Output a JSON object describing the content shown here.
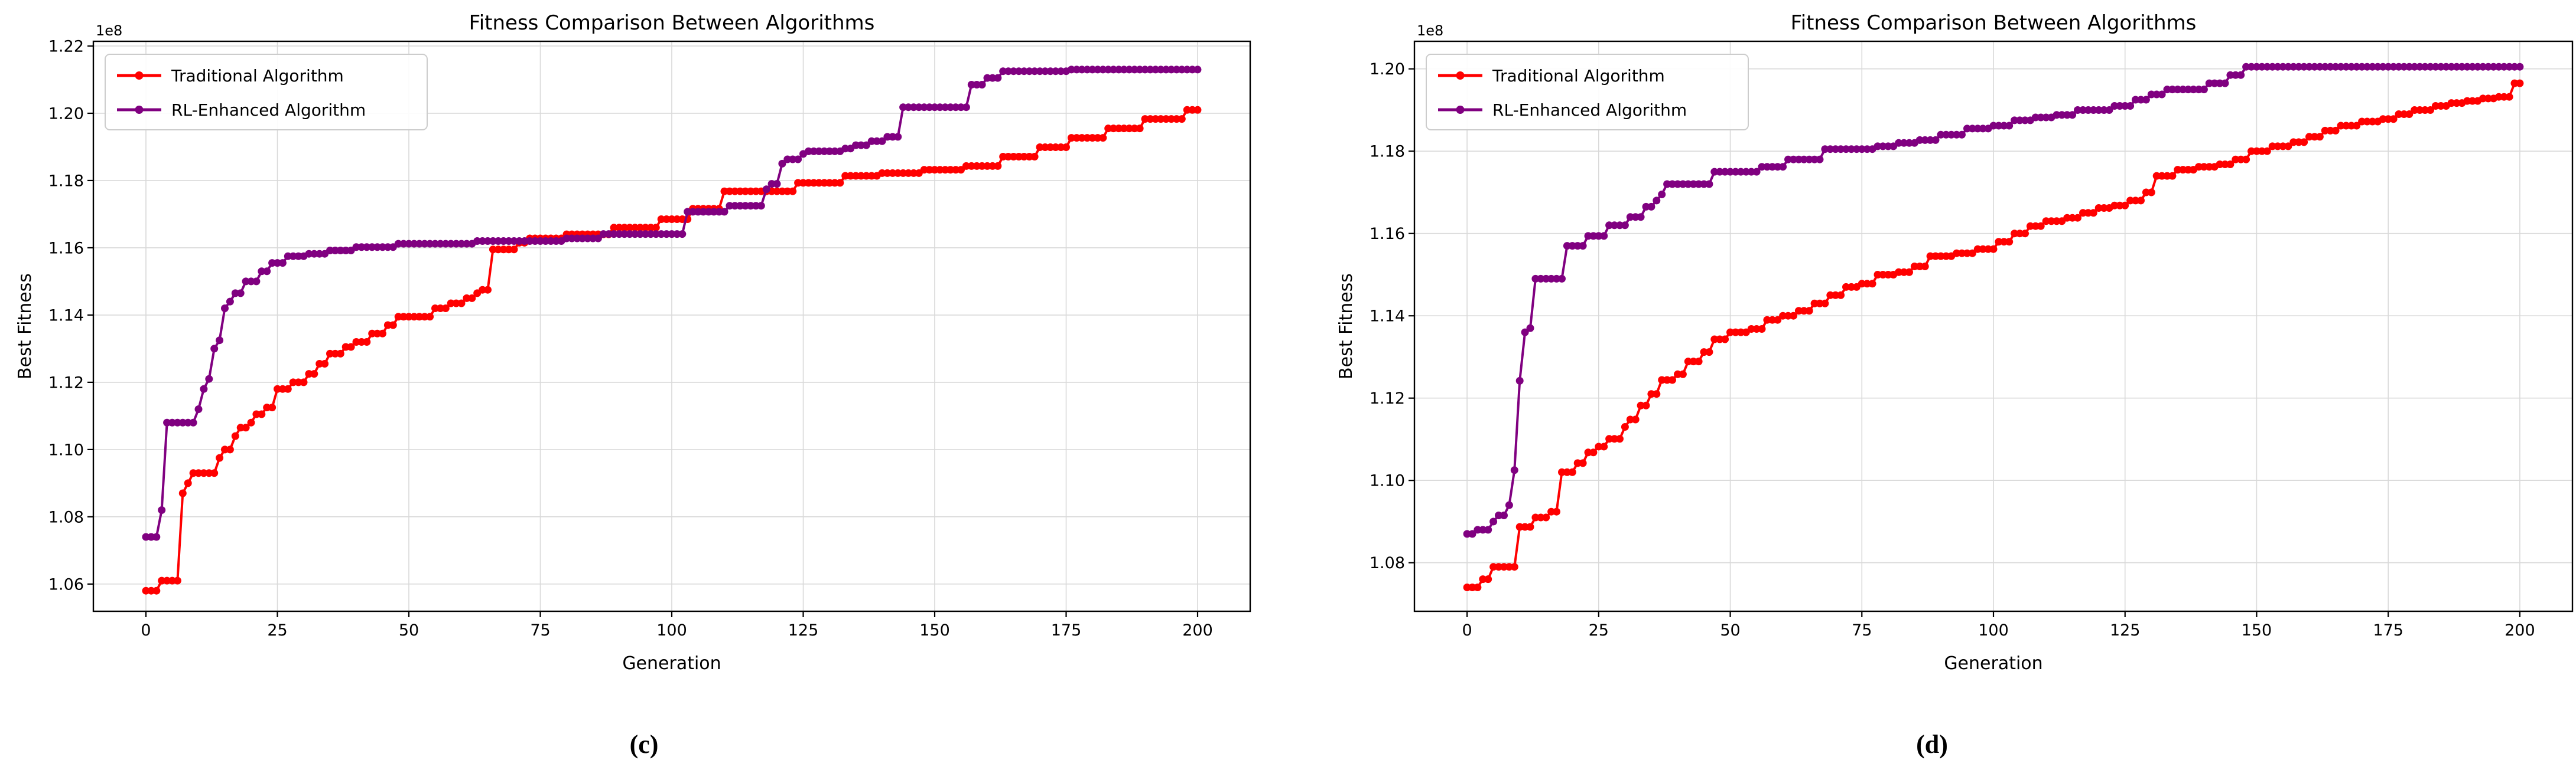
{
  "figure": {
    "background": "#ffffff",
    "captions": {
      "c": "(c)",
      "d": "(d)"
    }
  },
  "colors": {
    "traditional": "#ff0000",
    "rl_enhanced": "#800080",
    "grid": "#d9d9d9",
    "spine": "#000000",
    "text": "#000000",
    "legend_border": "#cccccc",
    "legend_bg": "#ffffff"
  },
  "chart_data": [
    {
      "id": "c",
      "type": "line",
      "title": "Fitness Comparison Between Algorithms",
      "xlabel": "Generation",
      "ylabel": "Best Fitness",
      "offset_label": "1e8",
      "caption": "(c)",
      "xlim": [
        -10,
        210
      ],
      "ylim": [
        1.0519,
        1.2214
      ],
      "x_ticks": [
        0,
        25,
        50,
        75,
        100,
        125,
        150,
        175,
        200
      ],
      "y_ticks": [
        1.06,
        1.08,
        1.1,
        1.12,
        1.14,
        1.16,
        1.18,
        1.2,
        1.22
      ],
      "grid": true,
      "legend_position": "upper-left",
      "legend": [
        {
          "label": "Traditional Algorithm",
          "color": "#ff0000"
        },
        {
          "label": "RL-Enhanced Algorithm",
          "color": "#800080"
        }
      ],
      "note": "y values are in units of 1e8 (Best Fitness). Series given as step breakpoints [generation, value]; value holds until next breakpoint, generations 0-200.",
      "series": [
        {
          "name": "Traditional Algorithm",
          "color": "#ff0000",
          "breakpoints": [
            [
              0,
              1.058
            ],
            [
              3,
              1.061
            ],
            [
              7,
              1.087
            ],
            [
              8,
              1.09
            ],
            [
              9,
              1.093
            ],
            [
              14,
              1.0975
            ],
            [
              15,
              1.1
            ],
            [
              17,
              1.104
            ],
            [
              18,
              1.1065
            ],
            [
              20,
              1.108
            ],
            [
              21,
              1.1105
            ],
            [
              23,
              1.1125
            ],
            [
              25,
              1.118
            ],
            [
              28,
              1.12
            ],
            [
              31,
              1.1225
            ],
            [
              33,
              1.1255
            ],
            [
              35,
              1.1285
            ],
            [
              38,
              1.1305
            ],
            [
              40,
              1.132
            ],
            [
              43,
              1.1345
            ],
            [
              46,
              1.137
            ],
            [
              48,
              1.1395
            ],
            [
              55,
              1.142
            ],
            [
              58,
              1.1435
            ],
            [
              61,
              1.145
            ],
            [
              63,
              1.1465
            ],
            [
              64,
              1.1475
            ],
            [
              66,
              1.1595
            ],
            [
              71,
              1.1615
            ],
            [
              73,
              1.1628
            ],
            [
              80,
              1.164
            ],
            [
              89,
              1.166
            ],
            [
              98,
              1.1685
            ],
            [
              104,
              1.1716
            ],
            [
              110,
              1.1768
            ],
            [
              124,
              1.1793
            ],
            [
              133,
              1.1814
            ],
            [
              140,
              1.1822
            ],
            [
              148,
              1.1832
            ],
            [
              156,
              1.1843
            ],
            [
              163,
              1.1871
            ],
            [
              170,
              1.1899
            ],
            [
              176,
              1.1927
            ],
            [
              183,
              1.1955
            ],
            [
              190,
              1.1983
            ],
            [
              198,
              1.201
            ]
          ]
        },
        {
          "name": "RL-Enhanced Algorithm",
          "color": "#800080",
          "breakpoints": [
            [
              0,
              1.074
            ],
            [
              3,
              1.082
            ],
            [
              4,
              1.108
            ],
            [
              10,
              1.112
            ],
            [
              11,
              1.118
            ],
            [
              12,
              1.121
            ],
            [
              13,
              1.13
            ],
            [
              14,
              1.1325
            ],
            [
              15,
              1.142
            ],
            [
              16,
              1.144
            ],
            [
              17,
              1.1465
            ],
            [
              19,
              1.15
            ],
            [
              22,
              1.153
            ],
            [
              24,
              1.1555
            ],
            [
              27,
              1.1575
            ],
            [
              31,
              1.1582
            ],
            [
              35,
              1.1592
            ],
            [
              40,
              1.1602
            ],
            [
              48,
              1.1612
            ],
            [
              63,
              1.162
            ],
            [
              80,
              1.1628
            ],
            [
              87,
              1.1641
            ],
            [
              103,
              1.1707
            ],
            [
              111,
              1.1725
            ],
            [
              118,
              1.1774
            ],
            [
              119,
              1.179
            ],
            [
              121,
              1.185
            ],
            [
              122,
              1.1863
            ],
            [
              125,
              1.1879
            ],
            [
              126,
              1.1887
            ],
            [
              133,
              1.1895
            ],
            [
              135,
              1.1905
            ],
            [
              138,
              1.1917
            ],
            [
              141,
              1.193
            ],
            [
              144,
              1.2018
            ],
            [
              157,
              1.2085
            ],
            [
              160,
              1.2105
            ],
            [
              163,
              1.2125
            ],
            [
              176,
              1.213
            ]
          ]
        }
      ]
    },
    {
      "id": "d",
      "type": "line",
      "title": "Fitness Comparison Between Algorithms",
      "xlabel": "Generation",
      "ylabel": "Best Fitness",
      "offset_label": "1e8",
      "caption": "(d)",
      "xlim": [
        -10,
        210
      ],
      "ylim": [
        1.0682,
        1.2067
      ],
      "x_ticks": [
        0,
        25,
        50,
        75,
        100,
        125,
        150,
        175,
        200
      ],
      "y_ticks": [
        1.08,
        1.1,
        1.12,
        1.14,
        1.16,
        1.18,
        1.2
      ],
      "grid": true,
      "legend_position": "upper-left",
      "legend": [
        {
          "label": "Traditional Algorithm",
          "color": "#ff0000"
        },
        {
          "label": "RL-Enhanced Algorithm",
          "color": "#800080"
        }
      ],
      "note": "y values are in units of 1e8 (Best Fitness). Series given as step breakpoints [generation, value]; value holds until next breakpoint, generations 0-200.",
      "series": [
        {
          "name": "Traditional Algorithm",
          "color": "#ff0000",
          "breakpoints": [
            [
              0,
              1.074
            ],
            [
              3,
              1.076
            ],
            [
              5,
              1.079
            ],
            [
              10,
              1.0887
            ],
            [
              13,
              1.091
            ],
            [
              16,
              1.0924
            ],
            [
              18,
              1.102
            ],
            [
              21,
              1.1042
            ],
            [
              23,
              1.1068
            ],
            [
              25,
              1.1082
            ],
            [
              27,
              1.1101
            ],
            [
              30,
              1.113
            ],
            [
              31,
              1.1148
            ],
            [
              33,
              1.1182
            ],
            [
              35,
              1.121
            ],
            [
              37,
              1.1244
            ],
            [
              40,
              1.1258
            ],
            [
              42,
              1.1289
            ],
            [
              45,
              1.1312
            ],
            [
              47,
              1.1343
            ],
            [
              50,
              1.136
            ],
            [
              54,
              1.1368
            ],
            [
              57,
              1.139
            ],
            [
              60,
              1.14
            ],
            [
              63,
              1.1412
            ],
            [
              66,
              1.143
            ],
            [
              69,
              1.145
            ],
            [
              72,
              1.147
            ],
            [
              75,
              1.1478
            ],
            [
              78,
              1.15
            ],
            [
              82,
              1.1506
            ],
            [
              85,
              1.152
            ],
            [
              88,
              1.1545
            ],
            [
              93,
              1.1552
            ],
            [
              97,
              1.1562
            ],
            [
              101,
              1.158
            ],
            [
              104,
              1.16
            ],
            [
              107,
              1.1618
            ],
            [
              110,
              1.163
            ],
            [
              114,
              1.1638
            ],
            [
              117,
              1.165
            ],
            [
              120,
              1.1662
            ],
            [
              123,
              1.1668
            ],
            [
              126,
              1.168
            ],
            [
              129,
              1.17
            ],
            [
              131,
              1.174
            ],
            [
              135,
              1.1755
            ],
            [
              139,
              1.1762
            ],
            [
              143,
              1.1768
            ],
            [
              146,
              1.178
            ],
            [
              149,
              1.18
            ],
            [
              153,
              1.1812
            ],
            [
              157,
              1.1822
            ],
            [
              160,
              1.1835
            ],
            [
              163,
              1.185
            ],
            [
              166,
              1.1862
            ],
            [
              170,
              1.1872
            ],
            [
              174,
              1.1878
            ],
            [
              177,
              1.189
            ],
            [
              180,
              1.19
            ],
            [
              184,
              1.191
            ],
            [
              187,
              1.1917
            ],
            [
              190,
              1.1922
            ],
            [
              193,
              1.1928
            ],
            [
              196,
              1.1932
            ],
            [
              199,
              1.1965
            ]
          ]
        },
        {
          "name": "RL-Enhanced Algorithm",
          "color": "#800080",
          "breakpoints": [
            [
              0,
              1.087
            ],
            [
              2,
              1.088
            ],
            [
              5,
              1.09
            ],
            [
              6,
              1.0915
            ],
            [
              8,
              1.094
            ],
            [
              9,
              1.1025
            ],
            [
              10,
              1.1242
            ],
            [
              11,
              1.136
            ],
            [
              12,
              1.137
            ],
            [
              13,
              1.149
            ],
            [
              19,
              1.157
            ],
            [
              23,
              1.1594
            ],
            [
              27,
              1.162
            ],
            [
              31,
              1.164
            ],
            [
              34,
              1.1665
            ],
            [
              36,
              1.168
            ],
            [
              37,
              1.1695
            ],
            [
              38,
              1.172
            ],
            [
              47,
              1.175
            ],
            [
              56,
              1.1762
            ],
            [
              61,
              1.178
            ],
            [
              68,
              1.1805
            ],
            [
              78,
              1.1812
            ],
            [
              82,
              1.182
            ],
            [
              86,
              1.1827
            ],
            [
              90,
              1.184
            ],
            [
              95,
              1.1855
            ],
            [
              100,
              1.1862
            ],
            [
              104,
              1.1875
            ],
            [
              108,
              1.1882
            ],
            [
              112,
              1.1888
            ],
            [
              116,
              1.19
            ],
            [
              123,
              1.191
            ],
            [
              127,
              1.1925
            ],
            [
              130,
              1.1938
            ],
            [
              133,
              1.195
            ],
            [
              141,
              1.1965
            ],
            [
              145,
              1.1985
            ],
            [
              148,
              1.2005
            ]
          ]
        }
      ]
    }
  ]
}
